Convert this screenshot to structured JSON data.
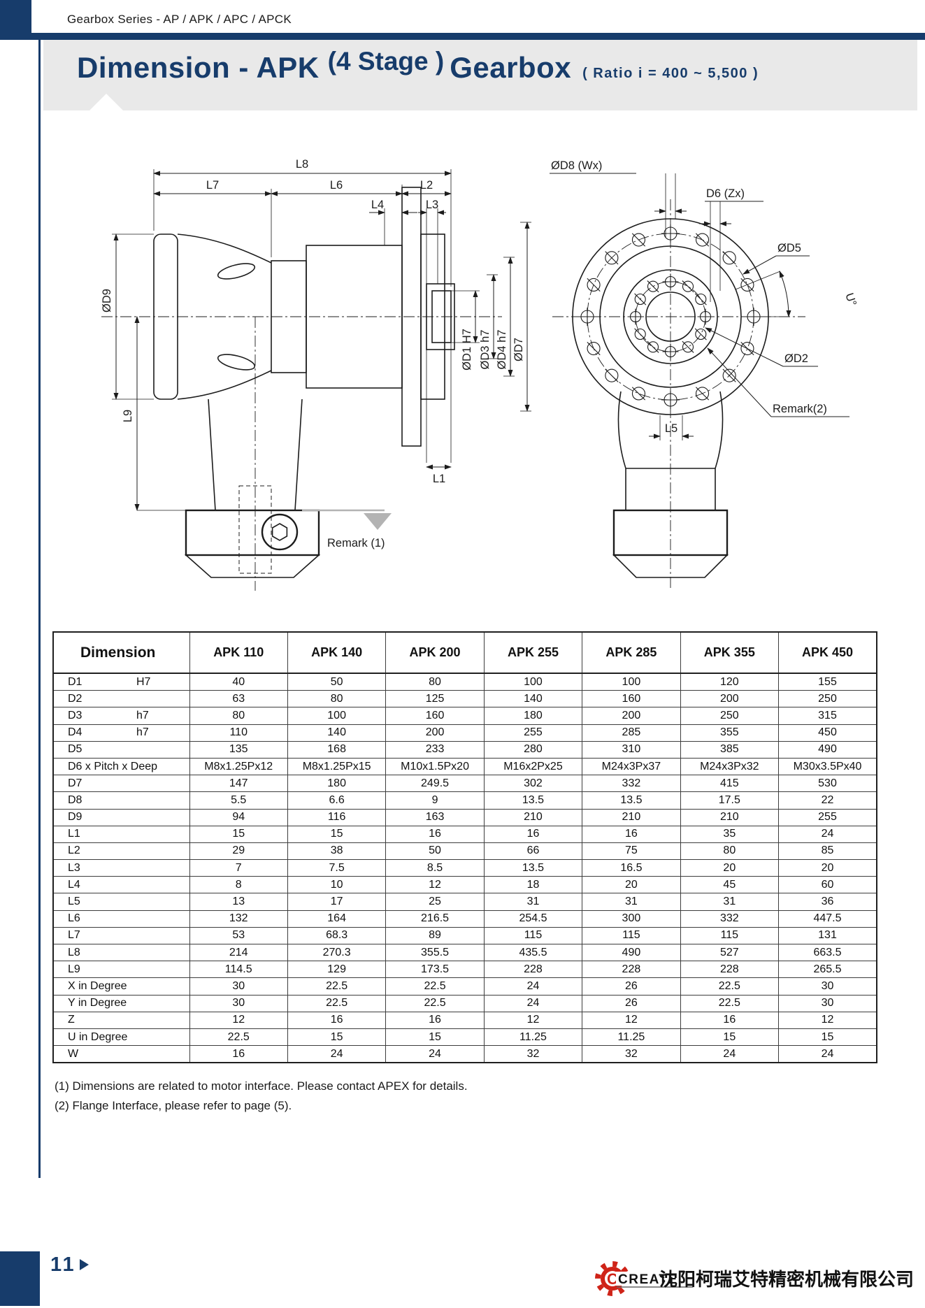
{
  "meta": {
    "series_header": "Gearbox Series - AP / APK / APC / APCK"
  },
  "title": {
    "prefix": "Dimension - APK",
    "stage": "(4 Stage )",
    "suffix": "Gearbox",
    "ratio": "(  Ratio i  =  400 ~ 5,500  )"
  },
  "colors": {
    "navy": "#173c6b",
    "banner_gray": "#e9e9e9",
    "logo_red": "#cf2318",
    "remark_gray": "#b3b3b3"
  },
  "drawing": {
    "side_view": {
      "dims": {
        "l8": "L8",
        "l7": "L7",
        "l6": "L6",
        "l2": "L2",
        "l4": "L4",
        "l3": "L3",
        "d9": "ØD9",
        "l9": "L9",
        "d1": "ØD1  H7",
        "d3": "ØD3  h7",
        "d4": "ØD4 h7",
        "d7": "ØD7",
        "l1": "L1",
        "remark1": "Remark (1)"
      }
    },
    "front_view": {
      "dims": {
        "d8": "ØD8 (Wx)",
        "d6": "D6 (Zx)",
        "d5": "ØD5",
        "u": "U°",
        "d2": "ØD2",
        "remark2": "Remark(2)",
        "l5": "L5"
      }
    }
  },
  "table": {
    "header": [
      "Dimension",
      "APK 110",
      "APK 140",
      "APK 200",
      "APK 255",
      "APK 285",
      "APK 355",
      "APK 450"
    ],
    "rows": [
      {
        "label": "D1",
        "tol": "H7",
        "values": [
          "40",
          "50",
          "80",
          "100",
          "100",
          "120",
          "155"
        ]
      },
      {
        "label": "D2",
        "tol": "",
        "values": [
          "63",
          "80",
          "125",
          "140",
          "160",
          "200",
          "250"
        ]
      },
      {
        "label": "D3",
        "tol": "h7",
        "values": [
          "80",
          "100",
          "160",
          "180",
          "200",
          "250",
          "315"
        ]
      },
      {
        "label": "D4",
        "tol": "h7",
        "values": [
          "110",
          "140",
          "200",
          "255",
          "285",
          "355",
          "450"
        ]
      },
      {
        "label": "D5",
        "tol": "",
        "values": [
          "135",
          "168",
          "233",
          "280",
          "310",
          "385",
          "490"
        ]
      },
      {
        "label": "D6 x Pitch x Deep",
        "tol": "",
        "values": [
          "M8x1.25Px12",
          "M8x1.25Px15",
          "M10x1.5Px20",
          "M16x2Px25",
          "M24x3Px37",
          "M24x3Px32",
          "M30x3.5Px40"
        ]
      },
      {
        "label": "D7",
        "tol": "",
        "values": [
          "147",
          "180",
          "249.5",
          "302",
          "332",
          "415",
          "530"
        ]
      },
      {
        "label": "D8",
        "tol": "",
        "values": [
          "5.5",
          "6.6",
          "9",
          "13.5",
          "13.5",
          "17.5",
          "22"
        ]
      },
      {
        "label": "D9",
        "tol": "",
        "values": [
          "94",
          "116",
          "163",
          "210",
          "210",
          "210",
          "255"
        ]
      },
      {
        "label": "L1",
        "tol": "",
        "values": [
          "15",
          "15",
          "16",
          "16",
          "16",
          "35",
          "24"
        ]
      },
      {
        "label": "L2",
        "tol": "",
        "values": [
          "29",
          "38",
          "50",
          "66",
          "75",
          "80",
          "85"
        ]
      },
      {
        "label": "L3",
        "tol": "",
        "values": [
          "7",
          "7.5",
          "8.5",
          "13.5",
          "16.5",
          "20",
          "20"
        ]
      },
      {
        "label": "L4",
        "tol": "",
        "values": [
          "8",
          "10",
          "12",
          "18",
          "20",
          "45",
          "60"
        ]
      },
      {
        "label": "L5",
        "tol": "",
        "values": [
          "13",
          "17",
          "25",
          "31",
          "31",
          "31",
          "36"
        ]
      },
      {
        "label": "L6",
        "tol": "",
        "values": [
          "132",
          "164",
          "216.5",
          "254.5",
          "300",
          "332",
          "447.5"
        ]
      },
      {
        "label": "L7",
        "tol": "",
        "values": [
          "53",
          "68.3",
          "89",
          "115",
          "115",
          "115",
          "131"
        ]
      },
      {
        "label": "L8",
        "tol": "",
        "values": [
          "214",
          "270.3",
          "355.5",
          "435.5",
          "490",
          "527",
          "663.5"
        ]
      },
      {
        "label": "L9",
        "tol": "",
        "values": [
          "114.5",
          "129",
          "173.5",
          "228",
          "228",
          "228",
          "265.5"
        ]
      },
      {
        "label": "X in Degree",
        "tol": "",
        "values": [
          "30",
          "22.5",
          "22.5",
          "24",
          "26",
          "22.5",
          "30"
        ]
      },
      {
        "label": "Y in Degree",
        "tol": "",
        "values": [
          "30",
          "22.5",
          "22.5",
          "24",
          "26",
          "22.5",
          "30"
        ]
      },
      {
        "label": "Z",
        "tol": "",
        "values": [
          "12",
          "16",
          "16",
          "12",
          "12",
          "16",
          "12"
        ]
      },
      {
        "label": "U in Degree",
        "tol": "",
        "values": [
          "22.5",
          "15",
          "15",
          "11.25",
          "11.25",
          "15",
          "15"
        ]
      },
      {
        "label": "W",
        "tol": "",
        "values": [
          "16",
          "24",
          "24",
          "32",
          "32",
          "24",
          "24"
        ]
      }
    ]
  },
  "footnotes": [
    "(1) Dimensions are related to motor interface. Please contact APEX for details.",
    "(2) Flange Interface, please refer to page (5)."
  ],
  "footer": {
    "page_number": "11",
    "logo_text": "CREATE",
    "company_name": "沈阳柯瑞艾特精密机械有限公司"
  }
}
